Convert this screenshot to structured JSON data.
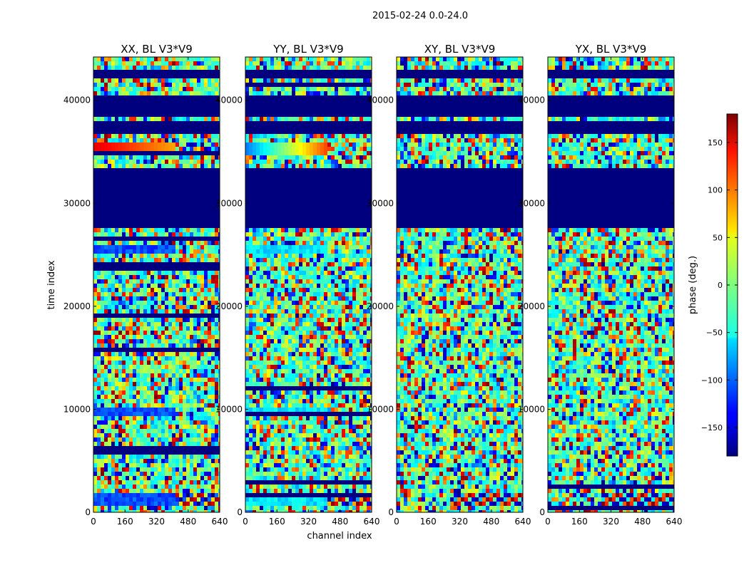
{
  "figure": {
    "suptitle": "2015-02-24 0.0-24.0"
  },
  "chart_data": {
    "type": "heatmap",
    "title": "2015-02-24 0.0-24.0",
    "xlabel": "channel index",
    "ylabel": "time index",
    "xlim": [
      0,
      640
    ],
    "ylim": [
      0,
      44200
    ],
    "xticks": [
      0,
      160,
      320,
      480,
      640
    ],
    "yticks": [
      0,
      10000,
      20000,
      30000,
      40000
    ],
    "colorbar": {
      "label": "phase (deg.)",
      "range": [
        -180,
        180
      ],
      "ticks": [
        -150,
        -100,
        -50,
        0,
        50,
        100,
        150
      ],
      "colormap": "jet"
    },
    "panels": [
      {
        "title": "XX, BL V3*V9",
        "polarization": "XX"
      },
      {
        "title": "YY, BL V3*V9",
        "polarization": "YY"
      },
      {
        "title": "XY, BL V3*V9",
        "polarization": "XY"
      },
      {
        "title": "YX, BL V3*V9",
        "polarization": "YX"
      }
    ],
    "flagged_time_ranges": [
      [
        27800,
        33600
      ],
      [
        36900,
        38100
      ],
      [
        38600,
        40700
      ],
      [
        42300,
        43100
      ]
    ],
    "coherent_bands": [
      {
        "t0": 34800,
        "t1": 35900,
        "description": "smooth phase ramp in XX/YY"
      },
      {
        "t0": 25500,
        "t1": 26200,
        "description": "coherent phase in XX/YY"
      },
      {
        "t0": 9500,
        "t1": 10200,
        "description": "coherent phase in XX/YY"
      },
      {
        "t0": 1000,
        "t1": 2200,
        "description": "fringe pattern at high channels"
      }
    ]
  }
}
